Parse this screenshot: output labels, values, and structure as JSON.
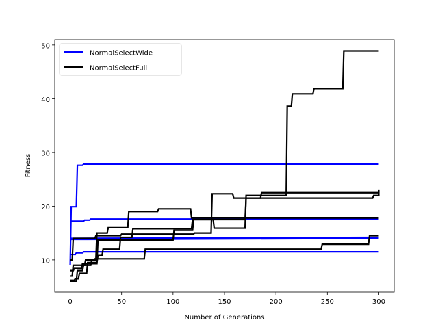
{
  "chart_data": {
    "type": "line",
    "xlabel": "Number of Generations",
    "ylabel": "Fitness",
    "xlim": [
      -15,
      315
    ],
    "ylim": [
      4,
      51
    ],
    "xticks": [
      0,
      50,
      100,
      150,
      200,
      250,
      300
    ],
    "yticks": [
      10,
      20,
      30,
      40,
      50
    ],
    "legend_position": "top-left",
    "legend": [
      {
        "label": "NormalSelectWide",
        "color": "#0000ff"
      },
      {
        "label": "NormalSelectFull",
        "color": "#000000"
      }
    ],
    "series": [
      {
        "group": "NormalSelectWide",
        "color": "#0000ff",
        "points": [
          [
            0,
            9
          ],
          [
            1,
            19.9
          ],
          [
            6,
            19.9
          ],
          [
            7,
            27.6
          ],
          [
            12,
            27.6
          ],
          [
            13,
            27.8
          ],
          [
            300,
            27.8
          ]
        ]
      },
      {
        "group": "NormalSelectWide",
        "color": "#0000ff",
        "points": [
          [
            0,
            17.2
          ],
          [
            13,
            17.2
          ],
          [
            14,
            17.4
          ],
          [
            19,
            17.4
          ],
          [
            20,
            17.6
          ],
          [
            300,
            17.6
          ]
        ]
      },
      {
        "group": "NormalSelectWide",
        "color": "#0000ff",
        "points": [
          [
            0,
            11
          ],
          [
            5,
            11
          ],
          [
            6,
            11.3
          ],
          [
            12,
            11.3
          ],
          [
            13,
            11.5
          ],
          [
            300,
            11.5
          ]
        ]
      },
      {
        "group": "NormalSelectWide",
        "color": "#0000ff",
        "points": [
          [
            0,
            13.8
          ],
          [
            300,
            14
          ]
        ]
      },
      {
        "group": "NormalSelectWide",
        "color": "#0000ff",
        "points": [
          [
            0,
            14
          ],
          [
            300,
            14.2
          ]
        ]
      },
      {
        "group": "NormalSelectFull",
        "color": "#000000",
        "points": [
          [
            0,
            10
          ],
          [
            2,
            10
          ],
          [
            3,
            14
          ],
          [
            24,
            14
          ],
          [
            25,
            14.5
          ],
          [
            49,
            14.5
          ],
          [
            50,
            14.8
          ],
          [
            120,
            14.8
          ],
          [
            121,
            15
          ],
          [
            137,
            15
          ],
          [
            138,
            22.3
          ],
          [
            158,
            22.3
          ],
          [
            159,
            21.5
          ],
          [
            185,
            21.5
          ],
          [
            186,
            22.5
          ],
          [
            300,
            22.5
          ]
        ]
      },
      {
        "group": "NormalSelectFull",
        "color": "#000000",
        "points": [
          [
            0,
            6
          ],
          [
            6,
            6
          ],
          [
            7,
            8
          ],
          [
            12,
            8
          ],
          [
            13,
            9
          ],
          [
            20,
            9
          ],
          [
            21,
            10
          ],
          [
            23,
            10
          ],
          [
            24,
            10.2
          ],
          [
            72,
            10.2
          ],
          [
            73,
            12
          ],
          [
            244,
            12
          ],
          [
            245,
            12.9
          ],
          [
            290,
            12.9
          ],
          [
            291,
            14.5
          ],
          [
            300,
            14.5
          ]
        ]
      },
      {
        "group": "NormalSelectFull",
        "color": "#000000",
        "points": [
          [
            0,
            7
          ],
          [
            2,
            7
          ],
          [
            3,
            9
          ],
          [
            14,
            9
          ],
          [
            15,
            10
          ],
          [
            25,
            10
          ],
          [
            26,
            15
          ],
          [
            36,
            15
          ],
          [
            37,
            16
          ],
          [
            56,
            16
          ],
          [
            57,
            19
          ],
          [
            85,
            19
          ],
          [
            86,
            19.5
          ],
          [
            117,
            19.5
          ],
          [
            118,
            17.8
          ],
          [
            300,
            17.8
          ]
        ]
      },
      {
        "group": "NormalSelectFull",
        "color": "#000000",
        "points": [
          [
            0,
            6.2
          ],
          [
            4,
            6.2
          ],
          [
            5,
            6.5
          ],
          [
            8,
            6.5
          ],
          [
            9,
            7.5
          ],
          [
            16,
            7.5
          ],
          [
            17,
            9.5
          ],
          [
            26,
            9.5
          ],
          [
            27,
            10.8
          ],
          [
            31,
            10.8
          ],
          [
            32,
            12
          ],
          [
            48,
            12
          ],
          [
            49,
            14.2
          ],
          [
            60,
            14.2
          ],
          [
            61,
            15.8
          ],
          [
            118,
            15.8
          ],
          [
            119,
            17.5
          ],
          [
            139,
            17.5
          ],
          [
            140,
            15.9
          ],
          [
            170,
            15.9
          ],
          [
            171,
            22
          ],
          [
            210,
            22
          ],
          [
            211,
            38.6
          ],
          [
            215,
            38.6
          ],
          [
            216,
            40.9
          ],
          [
            236,
            40.9
          ],
          [
            237,
            41.9
          ],
          [
            265,
            41.9
          ],
          [
            266,
            48.9
          ],
          [
            300,
            48.9
          ]
        ]
      },
      {
        "group": "NormalSelectFull",
        "color": "#000000",
        "points": [
          [
            0,
            8
          ],
          [
            3,
            8
          ],
          [
            4,
            8.4
          ],
          [
            11,
            8.4
          ],
          [
            12,
            9.3
          ],
          [
            26,
            9.3
          ],
          [
            27,
            13.7
          ],
          [
            100,
            13.7
          ],
          [
            101,
            15.5
          ],
          [
            119,
            15.5
          ],
          [
            120,
            17.5
          ],
          [
            170,
            17.5
          ],
          [
            171,
            21.5
          ],
          [
            294,
            21.5
          ],
          [
            295,
            22
          ],
          [
            300,
            22
          ],
          [
            300,
            23
          ]
        ]
      }
    ]
  }
}
